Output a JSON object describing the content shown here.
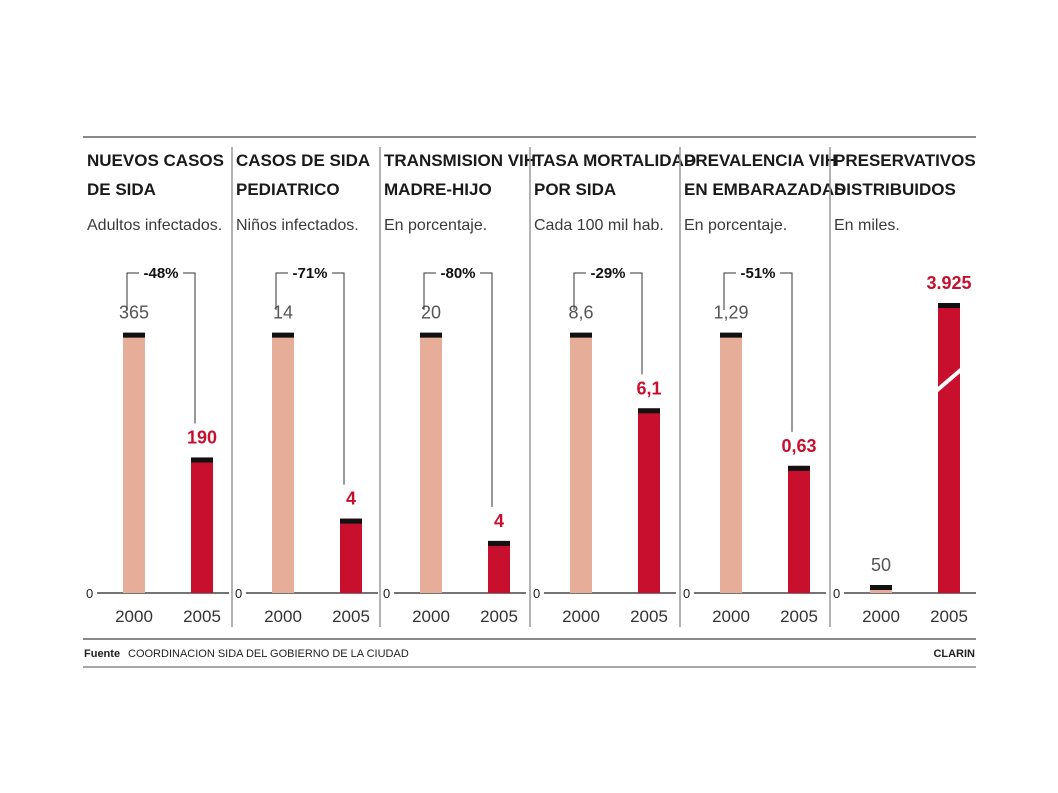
{
  "colors": {
    "bar_2000": "#e6ad98",
    "bar_2005": "#c8102e",
    "bar_cap": "#111111",
    "text_dark": "#1a1a1a",
    "accent_red": "#c8102e",
    "rule": "#888888"
  },
  "footer": {
    "source_label": "Fuente",
    "source_text": "COORDINACION SIDA DEL GOBIERNO DE LA CIUDAD",
    "brand": "CLARIN"
  },
  "chart_data": [
    {
      "type": "bar",
      "title_lines": [
        "NUEVOS CASOS",
        "DE SIDA"
      ],
      "subtitle": "Adultos infectados.",
      "categories": [
        "2000",
        "2005"
      ],
      "values": [
        365,
        190
      ],
      "value_labels": [
        "365",
        "190"
      ],
      "change": "-48%",
      "zero_label": "0"
    },
    {
      "type": "bar",
      "title_lines": [
        "CASOS  DE SIDA",
        "PEDIATRICO"
      ],
      "subtitle": "Niños infectados.",
      "categories": [
        "2000",
        "2005"
      ],
      "values": [
        14,
        4
      ],
      "value_labels": [
        "14",
        "4"
      ],
      "change": "-71%",
      "zero_label": "0"
    },
    {
      "type": "bar",
      "title_lines": [
        "TRANSMISION VIH",
        "MADRE-HIJO"
      ],
      "subtitle": "En porcentaje.",
      "categories": [
        "2000",
        "2005"
      ],
      "values": [
        20,
        4
      ],
      "value_labels": [
        "20",
        "4"
      ],
      "change": "-80%",
      "zero_label": "0"
    },
    {
      "type": "bar",
      "title_lines": [
        "TASA MORTALIDAD",
        "POR SIDA"
      ],
      "subtitle": "Cada 100 mil hab.",
      "categories": [
        "2000",
        "2005"
      ],
      "values": [
        8.6,
        6.1
      ],
      "value_labels": [
        "8,6",
        "6,1"
      ],
      "change": "-29%",
      "zero_label": "0"
    },
    {
      "type": "bar",
      "title_lines": [
        "PREVALENCIA VIH",
        "EN EMBARAZADAS"
      ],
      "subtitle": "En porcentaje.",
      "categories": [
        "2000",
        "2005"
      ],
      "values": [
        1.29,
        0.63
      ],
      "value_labels": [
        "1,29",
        "0,63"
      ],
      "change": "-51%",
      "zero_label": "0"
    },
    {
      "type": "bar",
      "title_lines": [
        "PRESERVATIVOS",
        "DISTRIBUIDOS"
      ],
      "subtitle": "En miles.",
      "categories": [
        "2000",
        "2005"
      ],
      "values": [
        50,
        3925
      ],
      "value_labels": [
        "50",
        "3.925"
      ],
      "change": "",
      "zero_label": "0",
      "axis_break": true
    }
  ]
}
